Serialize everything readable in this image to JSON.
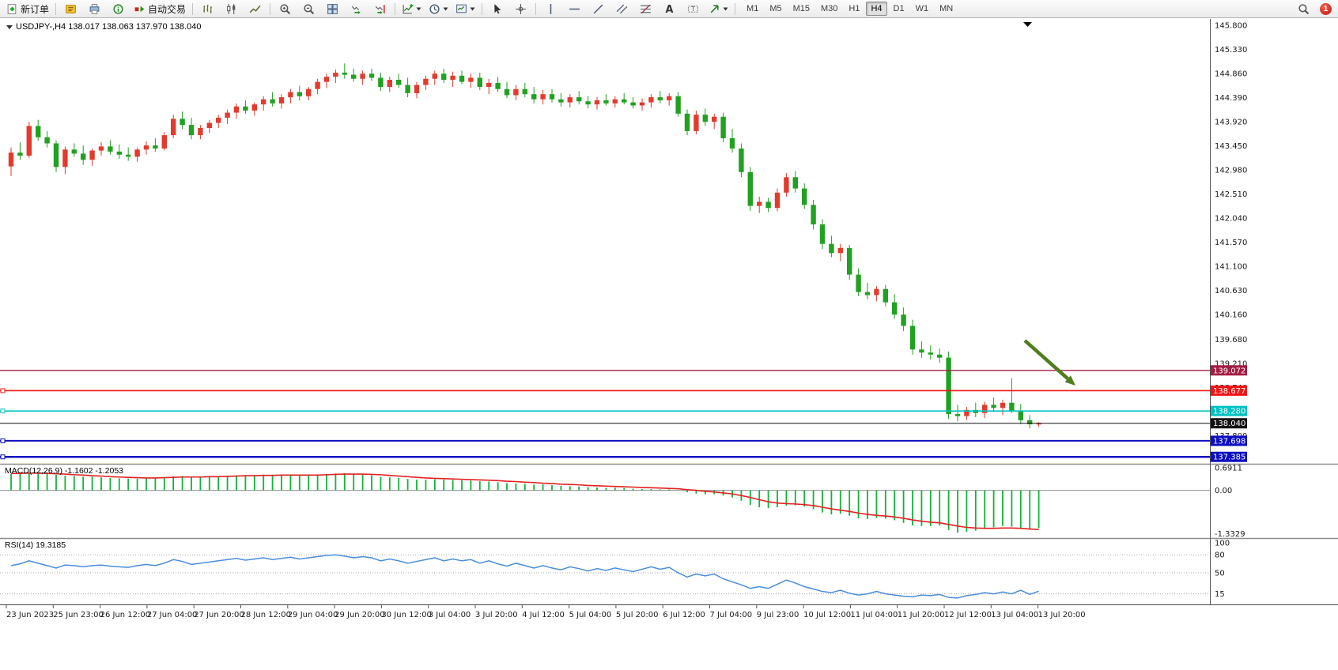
{
  "toolbar": {
    "new_order_label": "新订单",
    "auto_trading_label": "自动交易",
    "timeframes": {
      "items": [
        "M1",
        "M5",
        "M15",
        "M30",
        "H1",
        "H4",
        "D1",
        "W1",
        "MN"
      ],
      "active": "H4"
    },
    "badge": "1"
  },
  "chart": {
    "title": "USDJPY-,H4  138.017 138.063 137.970 138.040",
    "price_axis_ticks": [
      "145.800",
      "145.330",
      "144.860",
      "144.390",
      "143.920",
      "143.450",
      "142.980",
      "142.510",
      "142.040",
      "141.570",
      "141.100",
      "140.630",
      "140.160",
      "139.680",
      "139.210",
      "138.740",
      "138.270",
      "137.800"
    ],
    "hlines": [
      {
        "price": 139.072,
        "label": "139.072",
        "color": "#a21d42",
        "width": 1.4,
        "handle": false
      },
      {
        "price": 138.677,
        "label": "138.677",
        "color": "#f21515",
        "width": 1.6,
        "handle": true
      },
      {
        "price": 138.28,
        "label": "138.280",
        "color": "#00c2c2",
        "width": 1.6,
        "handle": true
      },
      {
        "price": 138.04,
        "label": "138.040",
        "color": "#111111",
        "width": 1,
        "handle": false
      },
      {
        "price": 137.698,
        "label": "137.698",
        "color": "#0d0dc0",
        "width": 2,
        "handle": true
      },
      {
        "price": 137.385,
        "label": "137.385",
        "color": "#0d0dc0",
        "width": 2.4,
        "handle": true
      }
    ],
    "annotations": [
      {
        "type": "arrow",
        "color": "#507d1e",
        "from": [
          1296,
          407
        ],
        "to": [
          1360,
          464
        ]
      }
    ]
  },
  "chart_data": {
    "type": "candlestick",
    "symbol": "USDJPY-",
    "timeframe": "H4",
    "current_bar": {
      "open": 138.017,
      "high": 138.063,
      "low": 137.97,
      "close": 138.04
    },
    "bull_color": "#e23b2e",
    "bear_color": "#21a121",
    "y_range": [
      137.25,
      145.85
    ],
    "x_labels": [
      "23 Jun 2023",
      "25 Jun 23:00",
      "26 Jun 12:00",
      "27 Jun 04:00",
      "27 Jun 20:00",
      "28 Jun 12:00",
      "29 Jun 04:00",
      "29 Jun 20:00",
      "30 Jun 12:00",
      "3 Jul 04:00",
      "3 Jul 20:00",
      "4 Jul 12:00",
      "5 Jul 04:00",
      "5 Jul 20:00",
      "6 Jul 12:00",
      "7 Jul 04:00",
      "9 Jul 23:00",
      "10 Jul 12:00",
      "11 Jul 04:00",
      "11 Jul 20:00",
      "12 Jul 12:00",
      "13 Jul 04:00",
      "13 Jul 20:00"
    ],
    "candles": [
      [
        143.05,
        143.42,
        142.86,
        143.32
      ],
      [
        143.32,
        143.52,
        143.18,
        143.26
      ],
      [
        143.26,
        143.92,
        143.22,
        143.84
      ],
      [
        143.84,
        143.96,
        143.55,
        143.62
      ],
      [
        143.62,
        143.74,
        143.42,
        143.5
      ],
      [
        143.5,
        143.56,
        142.94,
        143.04
      ],
      [
        143.04,
        143.44,
        142.9,
        143.38
      ],
      [
        143.38,
        143.5,
        143.24,
        143.3
      ],
      [
        143.3,
        143.46,
        143.08,
        143.18
      ],
      [
        143.18,
        143.4,
        143.06,
        143.36
      ],
      [
        143.36,
        143.52,
        143.26,
        143.44
      ],
      [
        143.44,
        143.56,
        143.28,
        143.34
      ],
      [
        143.34,
        143.48,
        143.2,
        143.28
      ],
      [
        143.28,
        143.42,
        143.16,
        143.24
      ],
      [
        143.24,
        143.42,
        143.14,
        143.38
      ],
      [
        143.38,
        143.54,
        143.28,
        143.46
      ],
      [
        143.46,
        143.6,
        143.34,
        143.4
      ],
      [
        143.4,
        143.72,
        143.36,
        143.66
      ],
      [
        143.66,
        144.06,
        143.6,
        143.98
      ],
      [
        143.98,
        144.12,
        143.78,
        143.86
      ],
      [
        143.86,
        144.0,
        143.58,
        143.66
      ],
      [
        143.66,
        143.86,
        143.58,
        143.8
      ],
      [
        143.8,
        143.96,
        143.7,
        143.9
      ],
      [
        143.9,
        144.06,
        143.8,
        144.0
      ],
      [
        144.0,
        144.16,
        143.88,
        144.1
      ],
      [
        144.1,
        144.28,
        143.98,
        144.22
      ],
      [
        144.22,
        144.34,
        144.08,
        144.14
      ],
      [
        144.14,
        144.3,
        144.04,
        144.26
      ],
      [
        144.26,
        144.42,
        144.14,
        144.36
      ],
      [
        144.36,
        144.5,
        144.22,
        144.28
      ],
      [
        144.28,
        144.46,
        144.18,
        144.4
      ],
      [
        144.4,
        144.56,
        144.28,
        144.5
      ],
      [
        144.5,
        144.62,
        144.34,
        144.42
      ],
      [
        144.42,
        144.6,
        144.34,
        144.56
      ],
      [
        144.56,
        144.76,
        144.46,
        144.7
      ],
      [
        144.7,
        144.86,
        144.58,
        144.8
      ],
      [
        144.8,
        144.94,
        144.68,
        144.88
      ],
      [
        144.88,
        145.06,
        144.76,
        144.84
      ],
      [
        144.84,
        144.96,
        144.7,
        144.76
      ],
      [
        144.76,
        144.92,
        144.64,
        144.86
      ],
      [
        144.86,
        144.96,
        144.72,
        144.78
      ],
      [
        144.78,
        144.88,
        144.52,
        144.6
      ],
      [
        144.6,
        144.8,
        144.5,
        144.74
      ],
      [
        144.74,
        144.86,
        144.58,
        144.64
      ],
      [
        144.64,
        144.78,
        144.4,
        144.48
      ],
      [
        144.48,
        144.7,
        144.38,
        144.64
      ],
      [
        144.64,
        144.82,
        144.54,
        144.76
      ],
      [
        144.76,
        144.92,
        144.64,
        144.86
      ],
      [
        144.86,
        144.96,
        144.68,
        144.74
      ],
      [
        144.74,
        144.9,
        144.6,
        144.82
      ],
      [
        144.82,
        144.92,
        144.66,
        144.7
      ],
      [
        144.7,
        144.86,
        144.58,
        144.78
      ],
      [
        144.78,
        144.88,
        144.54,
        144.6
      ],
      [
        144.6,
        144.76,
        144.46,
        144.68
      ],
      [
        144.68,
        144.8,
        144.5,
        144.56
      ],
      [
        144.56,
        144.7,
        144.38,
        144.44
      ],
      [
        144.44,
        144.64,
        144.34,
        144.56
      ],
      [
        144.56,
        144.68,
        144.4,
        144.46
      ],
      [
        144.46,
        144.6,
        144.28,
        144.36
      ],
      [
        144.36,
        144.54,
        144.26,
        144.46
      ],
      [
        144.46,
        144.56,
        144.3,
        144.36
      ],
      [
        144.36,
        144.48,
        144.22,
        144.3
      ],
      [
        144.3,
        144.46,
        144.2,
        144.4
      ],
      [
        144.4,
        144.52,
        144.26,
        144.32
      ],
      [
        144.32,
        144.42,
        144.18,
        144.26
      ],
      [
        144.26,
        144.4,
        144.16,
        144.34
      ],
      [
        144.34,
        144.46,
        144.24,
        144.28
      ],
      [
        144.28,
        144.42,
        144.2,
        144.36
      ],
      [
        144.36,
        144.48,
        144.26,
        144.3
      ],
      [
        144.3,
        144.4,
        144.18,
        144.24
      ],
      [
        144.24,
        144.38,
        144.14,
        144.3
      ],
      [
        144.3,
        144.46,
        144.2,
        144.4
      ],
      [
        144.4,
        144.52,
        144.28,
        144.34
      ],
      [
        144.34,
        144.48,
        144.24,
        144.42
      ],
      [
        144.42,
        144.5,
        144.02,
        144.08
      ],
      [
        144.08,
        144.16,
        143.66,
        143.74
      ],
      [
        143.74,
        144.14,
        143.68,
        144.06
      ],
      [
        144.06,
        144.18,
        143.84,
        143.92
      ],
      [
        143.92,
        144.08,
        143.78,
        144.02
      ],
      [
        144.02,
        144.1,
        143.52,
        143.6
      ],
      [
        143.6,
        143.78,
        143.32,
        143.4
      ],
      [
        143.4,
        143.5,
        142.84,
        142.94
      ],
      [
        142.94,
        143.04,
        142.18,
        142.28
      ],
      [
        142.28,
        142.46,
        142.14,
        142.36
      ],
      [
        142.36,
        142.44,
        142.16,
        142.24
      ],
      [
        142.24,
        142.62,
        142.18,
        142.54
      ],
      [
        142.54,
        142.92,
        142.46,
        142.84
      ],
      [
        142.84,
        142.96,
        142.54,
        142.62
      ],
      [
        142.62,
        142.72,
        142.22,
        142.3
      ],
      [
        142.3,
        142.4,
        141.82,
        141.92
      ],
      [
        141.92,
        142.02,
        141.44,
        141.54
      ],
      [
        141.54,
        141.7,
        141.28,
        141.36
      ],
      [
        141.36,
        141.54,
        141.2,
        141.46
      ],
      [
        141.46,
        141.52,
        140.84,
        140.94
      ],
      [
        140.94,
        141.06,
        140.52,
        140.6
      ],
      [
        140.6,
        140.78,
        140.46,
        140.54
      ],
      [
        140.54,
        140.72,
        140.42,
        140.66
      ],
      [
        140.66,
        140.74,
        140.32,
        140.4
      ],
      [
        140.4,
        140.56,
        140.08,
        140.16
      ],
      [
        140.16,
        140.3,
        139.84,
        139.94
      ],
      [
        139.94,
        140.06,
        139.38,
        139.48
      ],
      [
        139.48,
        139.64,
        139.32,
        139.42
      ],
      [
        139.42,
        139.56,
        139.28,
        139.38
      ],
      [
        139.38,
        139.5,
        139.22,
        139.32
      ],
      [
        139.32,
        139.44,
        138.12,
        138.22
      ],
      [
        138.22,
        138.4,
        138.08,
        138.18
      ],
      [
        138.18,
        138.36,
        138.1,
        138.3
      ],
      [
        138.3,
        138.44,
        138.16,
        138.24
      ],
      [
        138.24,
        138.46,
        138.14,
        138.4
      ],
      [
        138.4,
        138.54,
        138.26,
        138.34
      ],
      [
        138.34,
        138.5,
        138.2,
        138.44
      ],
      [
        138.44,
        138.92,
        138.24,
        138.28
      ],
      [
        138.28,
        138.42,
        138.02,
        138.1
      ],
      [
        138.1,
        138.2,
        137.94,
        138.02
      ],
      [
        138.017,
        138.063,
        137.97,
        138.04
      ]
    ],
    "indicators": [
      {
        "name": "MACD",
        "label": "MACD(12,26,9) -1.1602 -1.2053",
        "scale": [
          "0.6911",
          "0.00",
          "-1.3329"
        ],
        "y_range": [
          -1.42,
          0.72
        ],
        "hist_color": "#12b33a",
        "signal_color": "#e32020",
        "histogram": [
          0.5,
          0.52,
          0.55,
          0.53,
          0.5,
          0.48,
          0.45,
          0.44,
          0.42,
          0.42,
          0.4,
          0.38,
          0.37,
          0.36,
          0.36,
          0.37,
          0.38,
          0.4,
          0.43,
          0.44,
          0.42,
          0.41,
          0.42,
          0.43,
          0.45,
          0.46,
          0.47,
          0.47,
          0.48,
          0.48,
          0.48,
          0.49,
          0.47,
          0.47,
          0.48,
          0.5,
          0.52,
          0.53,
          0.51,
          0.49,
          0.46,
          0.42,
          0.4,
          0.38,
          0.35,
          0.33,
          0.33,
          0.34,
          0.33,
          0.32,
          0.31,
          0.3,
          0.28,
          0.27,
          0.25,
          0.22,
          0.21,
          0.2,
          0.18,
          0.18,
          0.16,
          0.14,
          0.13,
          0.12,
          0.1,
          0.09,
          0.08,
          0.08,
          0.07,
          0.05,
          0.04,
          0.04,
          0.03,
          0.03,
          0.0,
          -0.06,
          -0.1,
          -0.12,
          -0.12,
          -0.16,
          -0.22,
          -0.32,
          -0.45,
          -0.52,
          -0.55,
          -0.52,
          -0.47,
          -0.46,
          -0.5,
          -0.58,
          -0.68,
          -0.74,
          -0.72,
          -0.78,
          -0.86,
          -0.88,
          -0.85,
          -0.87,
          -0.92,
          -1.0,
          -1.08,
          -1.1,
          -1.1,
          -1.08,
          -1.22,
          -1.3,
          -1.28,
          -1.24,
          -1.18,
          -1.14,
          -1.1,
          -1.12,
          -1.18,
          -1.2,
          -1.1602
        ],
        "signal": [
          0.52,
          0.52,
          0.53,
          0.53,
          0.52,
          0.51,
          0.5,
          0.48,
          0.47,
          0.45,
          0.44,
          0.42,
          0.41,
          0.4,
          0.39,
          0.38,
          0.38,
          0.39,
          0.4,
          0.41,
          0.41,
          0.41,
          0.42,
          0.42,
          0.43,
          0.44,
          0.45,
          0.45,
          0.46,
          0.46,
          0.47,
          0.47,
          0.47,
          0.47,
          0.47,
          0.48,
          0.49,
          0.5,
          0.5,
          0.5,
          0.49,
          0.48,
          0.46,
          0.44,
          0.42,
          0.4,
          0.38,
          0.37,
          0.36,
          0.35,
          0.34,
          0.33,
          0.32,
          0.31,
          0.3,
          0.28,
          0.27,
          0.25,
          0.24,
          0.22,
          0.21,
          0.19,
          0.18,
          0.17,
          0.15,
          0.14,
          0.13,
          0.12,
          0.11,
          0.1,
          0.09,
          0.08,
          0.07,
          0.06,
          0.05,
          0.02,
          0.0,
          -0.03,
          -0.05,
          -0.08,
          -0.11,
          -0.16,
          -0.22,
          -0.29,
          -0.35,
          -0.39,
          -0.41,
          -0.42,
          -0.44,
          -0.47,
          -0.52,
          -0.57,
          -0.61,
          -0.65,
          -0.7,
          -0.74,
          -0.77,
          -0.79,
          -0.82,
          -0.86,
          -0.91,
          -0.95,
          -0.98,
          -1.0,
          -1.05,
          -1.1,
          -1.14,
          -1.16,
          -1.17,
          -1.17,
          -1.16,
          -1.16,
          -1.17,
          -1.19,
          -1.2053
        ]
      },
      {
        "name": "RSI",
        "label": "RSI(14) 19.3185",
        "value": "19.3185",
        "scale": [
          "100",
          "80",
          "50",
          "15"
        ],
        "levels": [
          80,
          50,
          15
        ],
        "y_range": [
          0,
          100
        ],
        "line_color": "#4a8ddc",
        "values": [
          62,
          65,
          70,
          66,
          62,
          58,
          63,
          62,
          60,
          62,
          63,
          61,
          60,
          59,
          62,
          64,
          62,
          66,
          72,
          69,
          64,
          66,
          68,
          70,
          72,
          74,
          71,
          73,
          75,
          72,
          74,
          76,
          73,
          75,
          77,
          79,
          80,
          78,
          75,
          77,
          75,
          70,
          73,
          70,
          66,
          69,
          72,
          75,
          70,
          73,
          70,
          72,
          66,
          70,
          65,
          61,
          66,
          62,
          58,
          62,
          58,
          55,
          60,
          57,
          53,
          57,
          54,
          58,
          55,
          52,
          56,
          60,
          56,
          59,
          50,
          43,
          48,
          45,
          48,
          40,
          35,
          30,
          24,
          27,
          24,
          31,
          38,
          33,
          27,
          23,
          19,
          17,
          21,
          16,
          13,
          15,
          19,
          15,
          13,
          11,
          10,
          13,
          12,
          14,
          9,
          8,
          12,
          14,
          17,
          15,
          18,
          15,
          21,
          14,
          19.3
        ]
      }
    ]
  }
}
